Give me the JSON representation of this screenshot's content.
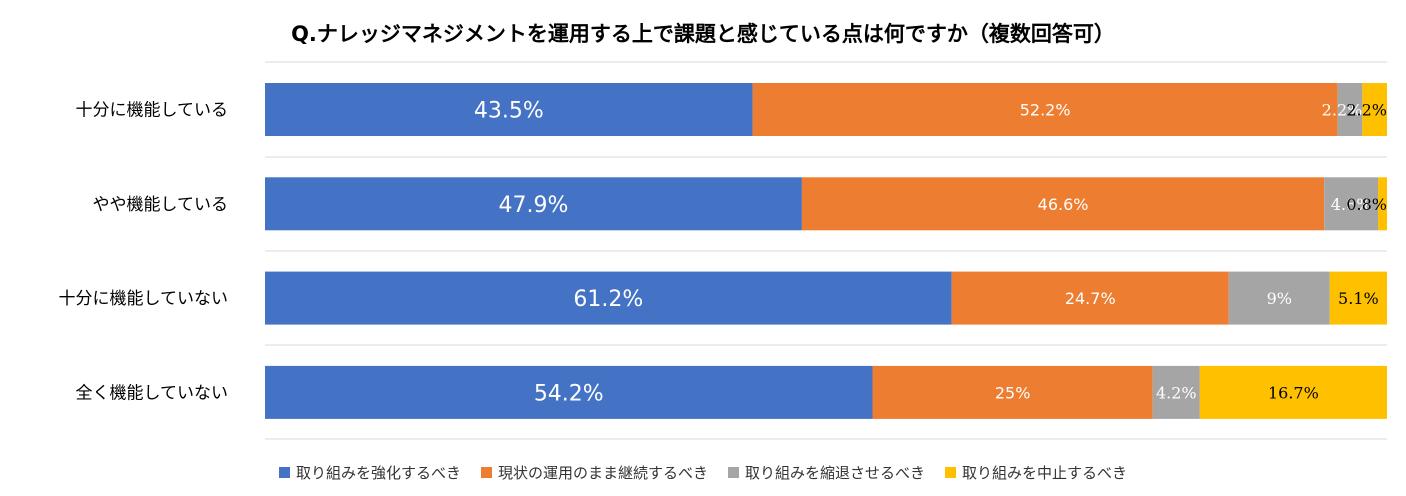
{
  "chart_data": {
    "type": "bar",
    "orientation": "horizontal",
    "stacked": "100%",
    "title": "Q.ナレッジマネジメントを運用する上で課題と感じている点は何ですか（複数回答可）",
    "categories": [
      "十分に機能している",
      "やや機能している",
      "十分に機能していない",
      "全く機能していない"
    ],
    "series": [
      {
        "name": "取り組みを強化するべき",
        "color": "#4472C4",
        "values": [
          43.5,
          47.9,
          61.2,
          54.2
        ],
        "labels": [
          "43.5%",
          "47.9%",
          "61.2%",
          "54.2%"
        ]
      },
      {
        "name": "現状の運用のまま継続するべき",
        "color": "#ED7D31",
        "values": [
          52.2,
          46.6,
          24.7,
          25
        ],
        "labels": [
          "52.2%",
          "46.6%",
          "24.7%",
          "25%"
        ]
      },
      {
        "name": "取り組みを縮退させるべき",
        "color": "#A5A5A5",
        "values": [
          2.2,
          4.8,
          9,
          4.2
        ],
        "labels": [
          "2.2%",
          "4.8%",
          "9%",
          "4.2%"
        ]
      },
      {
        "name": "取り組みを中止するべき",
        "color": "#FFC000",
        "values": [
          2.2,
          0.8,
          5.1,
          16.7
        ],
        "labels": [
          "2.2%",
          "0.8%",
          "5.1%",
          "16.7%"
        ]
      }
    ],
    "grid": true,
    "legend_position": "bottom"
  }
}
